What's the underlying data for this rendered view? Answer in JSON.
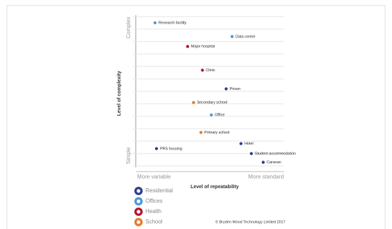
{
  "chart_data": {
    "type": "scatter",
    "y_axis_top": "Complex",
    "y_axis_bottom": "Simple",
    "y_label": "Level of complexity",
    "x_axis_left": "More variable",
    "x_axis_right": "More standard",
    "x_label": "Level of repeatability",
    "footnote": "© Bryden Wood Technology Limited 2017",
    "xlim": [
      0,
      10
    ],
    "ylim": [
      0,
      12
    ],
    "yticks": [
      0,
      1,
      2,
      3,
      4,
      5,
      6,
      7,
      8,
      9,
      10,
      11,
      12
    ],
    "grid": true,
    "series": [
      {
        "name": "Residential",
        "color": "#2d3f8f",
        "labels": [
          "Prison",
          "Hotel",
          "PRS housing",
          "Student accommodation",
          "Caravan"
        ],
        "x": [
          6.1,
          7.1,
          1.4,
          7.8,
          8.6
        ],
        "values": [
          6.2,
          1.8,
          1.4,
          1.0,
          0.3
        ]
      },
      {
        "name": "Offices",
        "color": "#4a9ad6",
        "labels": [
          "Research facility",
          "Data centre",
          "Office"
        ],
        "x": [
          1.3,
          6.5,
          5.1
        ],
        "values": [
          11.5,
          10.4,
          4.1
        ]
      },
      {
        "name": "Health",
        "color": "#b3182c",
        "labels": [
          "Major hospital",
          "Clinic"
        ],
        "x": [
          3.5,
          4.5
        ],
        "values": [
          9.6,
          7.7
        ]
      },
      {
        "name": "School",
        "color": "#e67a2b",
        "labels": [
          "Secondary school",
          "Primary school"
        ],
        "x": [
          3.9,
          4.4
        ],
        "values": [
          5.1,
          2.7
        ]
      }
    ]
  }
}
